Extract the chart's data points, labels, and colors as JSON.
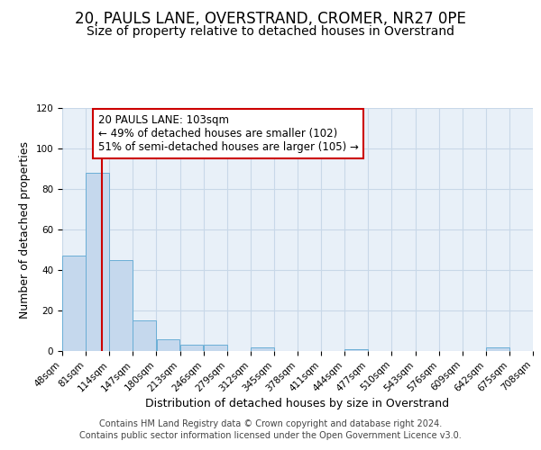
{
  "title": "20, PAULS LANE, OVERSTRAND, CROMER, NR27 0PE",
  "subtitle": "Size of property relative to detached houses in Overstrand",
  "xlabel": "Distribution of detached houses by size in Overstrand",
  "ylabel": "Number of detached properties",
  "bin_edges": [
    48,
    81,
    114,
    147,
    180,
    213,
    246,
    279,
    312,
    345,
    378,
    411,
    444,
    477,
    510,
    543,
    576,
    609,
    642,
    675,
    708
  ],
  "bar_heights": [
    47,
    88,
    45,
    15,
    6,
    3,
    3,
    0,
    2,
    0,
    0,
    0,
    1,
    0,
    0,
    0,
    0,
    0,
    2,
    0
  ],
  "bar_color": "#c5d8ed",
  "bar_edge_color": "#6aaed6",
  "property_size": 103,
  "vline_color": "#cc0000",
  "annotation_line1": "20 PAULS LANE: 103sqm",
  "annotation_line2": "← 49% of detached houses are smaller (102)",
  "annotation_line3": "51% of semi-detached houses are larger (105) →",
  "annotation_box_color": "#ffffff",
  "annotation_box_edge_color": "#cc0000",
  "ylim": [
    0,
    120
  ],
  "yticks": [
    0,
    20,
    40,
    60,
    80,
    100,
    120
  ],
  "footer_line1": "Contains HM Land Registry data © Crown copyright and database right 2024.",
  "footer_line2": "Contains public sector information licensed under the Open Government Licence v3.0.",
  "bg_color": "#ffffff",
  "plot_bg_color": "#e8f0f8",
  "grid_color": "#c8d8e8",
  "title_fontsize": 12,
  "subtitle_fontsize": 10,
  "axis_label_fontsize": 9,
  "tick_fontsize": 7.5,
  "annotation_fontsize": 8.5,
  "footer_fontsize": 7
}
